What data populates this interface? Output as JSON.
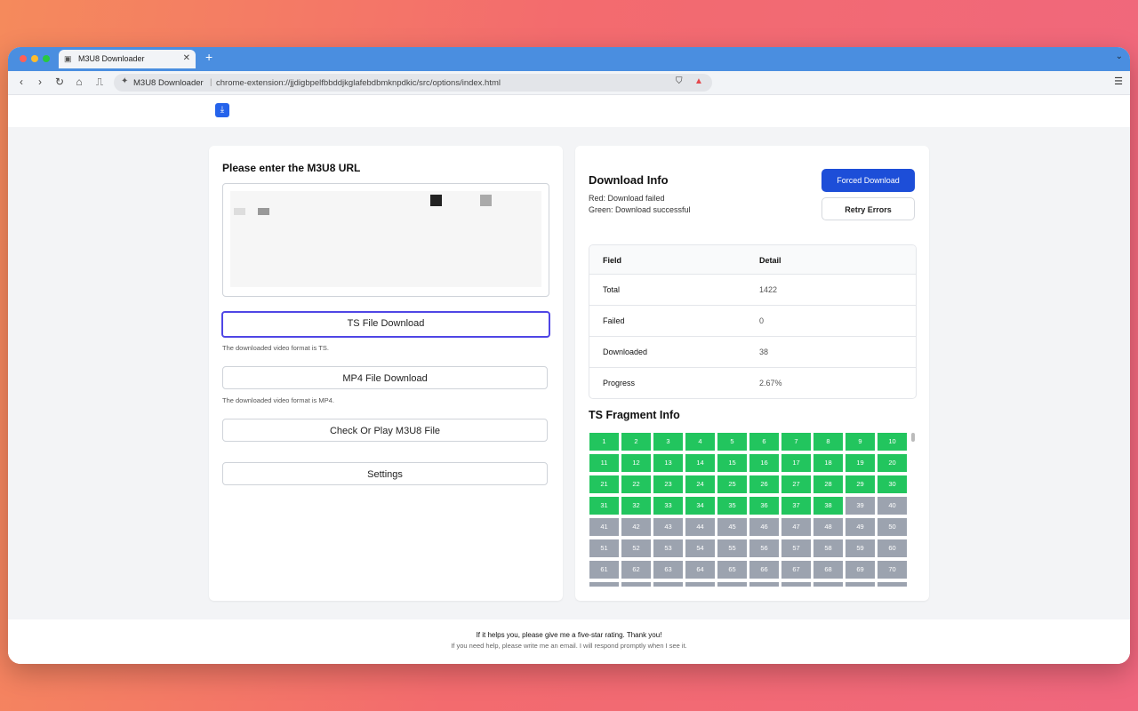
{
  "browser": {
    "tab_title": "M3U8 Downloader",
    "new_tab": "+",
    "site_label": "M3U8 Downloader",
    "address": "chrome-extension://jjdigbpelfbbddjkglafebdbmknpdkic/src/options/index.html",
    "colors": {
      "tabbar": "#4a8ee0",
      "close": "#ff5f57",
      "minimize": "#febc2e",
      "maximize": "#28c840"
    }
  },
  "left": {
    "url_heading": "Please enter the M3U8 URL",
    "ts_button": "TS File Download",
    "ts_hint": "The downloaded video format is TS.",
    "mp4_button": "MP4 File Download",
    "mp4_hint": "The downloaded video format is MP4.",
    "check_button": "Check Or Play M3U8 File",
    "settings_button": "Settings"
  },
  "right": {
    "heading": "Download Info",
    "legend_red": "Red: Download failed",
    "legend_green": "Green: Download successful",
    "forced_button": "Forced Download",
    "retry_button": "Retry Errors",
    "table": {
      "headers": [
        "Field",
        "Detail"
      ],
      "rows": [
        {
          "field": "Total",
          "detail": "1422"
        },
        {
          "field": "Failed",
          "detail": "0"
        },
        {
          "field": "Downloaded",
          "detail": "38"
        },
        {
          "field": "Progress",
          "detail": "2.67%"
        }
      ]
    },
    "fragment_heading": "TS Fragment Info",
    "fragments_downloaded": 38,
    "fragments_visible": 80,
    "colors": {
      "success": "#22c55e",
      "pending": "#9ca3af"
    }
  },
  "footer": {
    "line1": "If it helps you, please give me a five-star rating. Thank you!",
    "line2": "If you need help, please write me an email. I will respond promptly when I see it."
  }
}
